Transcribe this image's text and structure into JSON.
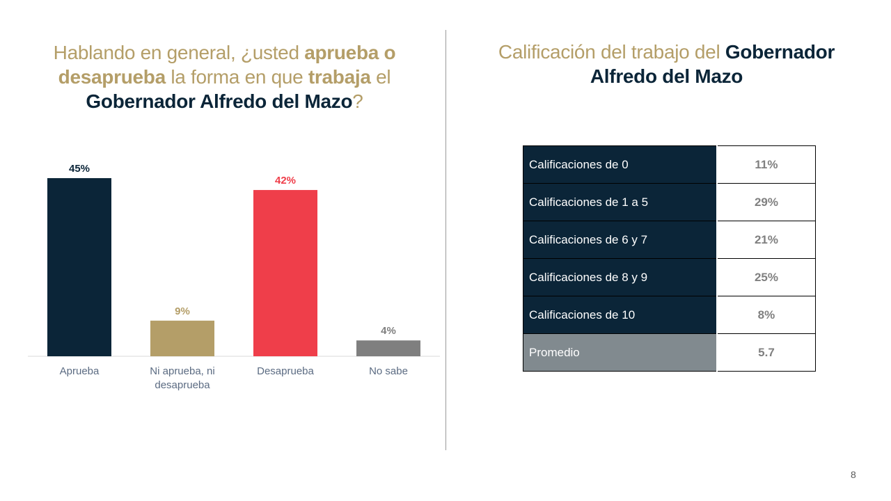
{
  "left_title": {
    "p1": "Hablando en general, ¿usted ",
    "p2": "aprueba o desaprueba",
    "p3": " la forma en que ",
    "p4": "trabaja",
    "p5": " el ",
    "p6": "Gobernador Alfredo del Mazo",
    "p7": "?"
  },
  "right_title": {
    "p1": "Calificación del trabajo del ",
    "p2": "Gobernador Alfredo del Mazo"
  },
  "chart_data": {
    "type": "bar",
    "categories": [
      "Aprueba",
      "Ni aprueba, ni desaprueba",
      "Desaprueba",
      "No sabe"
    ],
    "category_lines": [
      [
        "Aprueba"
      ],
      [
        "Ni aprueba, ni",
        "desaprueba"
      ],
      [
        "Desaprueba"
      ],
      [
        "No sabe"
      ]
    ],
    "values": [
      45,
      9,
      42,
      4
    ],
    "data_labels": [
      "45%",
      "9%",
      "42%",
      "4%"
    ],
    "colors": [
      "#0b2538",
      "#b49e68",
      "#ef3e4a",
      "#7f7f7f"
    ],
    "label_colors": [
      "#0b2538",
      "#b49e68",
      "#ef3e4a",
      "#7f7f7f"
    ],
    "ylim": [
      0,
      45
    ],
    "grid": false,
    "legend": "none"
  },
  "table": {
    "rows": [
      {
        "label": "Calificaciones de 0",
        "value": "11%"
      },
      {
        "label": "Calificaciones de 1 a 5",
        "value": "29%"
      },
      {
        "label": "Calificaciones de 6 y 7",
        "value": "21%"
      },
      {
        "label": "Calificaciones de 8 y 9",
        "value": "25%"
      },
      {
        "label": "Calificaciones de 10",
        "value": "8%"
      },
      {
        "label": "Promedio",
        "value": "5.7"
      }
    ]
  },
  "page_number": "8"
}
